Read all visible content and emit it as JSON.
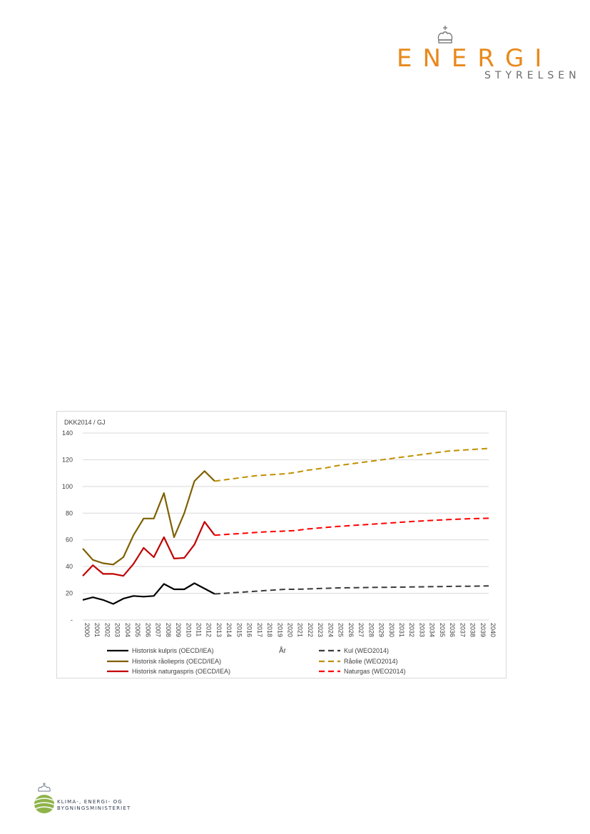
{
  "header_logo": {
    "word": "ENERGI",
    "sub": "STYRELSEN",
    "icon": "crown-icon",
    "color": "#e8891b"
  },
  "footer_logo": {
    "icon": "globe-crown-icon",
    "text": "KLIMA-, ENERGI- OG\nBYGNINGSMINISTERIET"
  },
  "chart_data": {
    "type": "line",
    "ylabel": "DKK2014 / GJ",
    "xlabel": "År",
    "ylim": [
      0,
      140
    ],
    "yticks": [
      "-",
      "20",
      "40",
      "60",
      "80",
      "100",
      "120",
      "140"
    ],
    "grid": true,
    "legend_position": "bottom",
    "x": [
      2000,
      2001,
      2002,
      2003,
      2004,
      2005,
      2006,
      2007,
      2008,
      2009,
      2010,
      2011,
      2012,
      2013,
      2014,
      2015,
      2016,
      2017,
      2018,
      2019,
      2020,
      2021,
      2022,
      2023,
      2024,
      2025,
      2026,
      2027,
      2028,
      2029,
      2030,
      2031,
      2032,
      2033,
      2034,
      2035,
      2036,
      2037,
      2038,
      2039,
      2040
    ],
    "x_tick_labels": [
      "2000",
      "2001",
      "2002",
      "2003",
      "2004",
      "2005",
      "2006",
      "2007",
      "2008",
      "2009",
      "2010",
      "2011",
      "2012",
      "2013",
      "2014",
      "2015",
      "2016",
      "2017",
      "2018",
      "2019",
      "2020",
      "2021",
      "2022",
      "2023",
      "2024",
      "2025",
      "2026",
      "2027",
      "2028",
      "2029",
      "2030",
      "2031",
      "2032",
      "2033",
      "2034",
      "2035",
      "2036",
      "2037",
      "2038",
      "2039",
      "2040"
    ],
    "series": [
      {
        "name": "Historisk kulpris (OECD/IEA)",
        "color": "#000000",
        "dashed": false,
        "x": [
          2000,
          2001,
          2002,
          2003,
          2004,
          2005,
          2006,
          2007,
          2008,
          2009,
          2010,
          2011,
          2012,
          2013
        ],
        "values": [
          15,
          17,
          15,
          12,
          16,
          18,
          17.5,
          18,
          27,
          23,
          23,
          27.5,
          23.5,
          19.5
        ]
      },
      {
        "name": "Historisk råoliepris (OECD/IEA)",
        "color": "#7f6000",
        "dashed": false,
        "x": [
          2000,
          2001,
          2002,
          2003,
          2004,
          2005,
          2006,
          2007,
          2008,
          2009,
          2010,
          2011,
          2012,
          2013
        ],
        "values": [
          53.5,
          45,
          42.5,
          41.5,
          47,
          63.5,
          76,
          76,
          95,
          62,
          80,
          104,
          111.5,
          104
        ]
      },
      {
        "name": "Historisk naturgaspris (OECD/IEA)",
        "color": "#c00000",
        "dashed": false,
        "x": [
          2000,
          2001,
          2002,
          2003,
          2004,
          2005,
          2006,
          2007,
          2008,
          2009,
          2010,
          2011,
          2012,
          2013
        ],
        "values": [
          33,
          41,
          34.5,
          34.5,
          33,
          42,
          54,
          47,
          62,
          46,
          46.5,
          56.5,
          73.5,
          63.5
        ]
      },
      {
        "name": "Kul (WEO2014)",
        "color": "#3a3a3a",
        "dashed": true,
        "x": [
          2013,
          2014,
          2015,
          2016,
          2017,
          2018,
          2019,
          2020,
          2021,
          2022,
          2023,
          2024,
          2025,
          2026,
          2027,
          2028,
          2029,
          2030,
          2031,
          2032,
          2033,
          2034,
          2035,
          2036,
          2037,
          2038,
          2039,
          2040
        ],
        "values": [
          19.5,
          20,
          20.5,
          21,
          21.5,
          22,
          22.5,
          23,
          23,
          23.2,
          23.5,
          23.7,
          24,
          24.1,
          24.2,
          24.3,
          24.4,
          24.5,
          24.6,
          24.7,
          24.8,
          24.9,
          25,
          25.1,
          25.2,
          25.3,
          25.4,
          25.5
        ]
      },
      {
        "name": "Råolie (WEO2014)",
        "color": "#bf9000",
        "dashed": true,
        "x": [
          2013,
          2014,
          2015,
          2016,
          2017,
          2018,
          2019,
          2020,
          2021,
          2022,
          2023,
          2024,
          2025,
          2026,
          2027,
          2028,
          2029,
          2030,
          2031,
          2032,
          2033,
          2034,
          2035,
          2036,
          2037,
          2038,
          2039,
          2040
        ],
        "values": [
          104,
          105,
          106,
          107,
          108,
          108.5,
          109,
          109.5,
          110.5,
          112,
          113,
          114,
          115.5,
          116.5,
          117.5,
          118.5,
          119.5,
          120.5,
          121.5,
          122.5,
          123.5,
          124.5,
          125.5,
          126.5,
          127,
          127.5,
          128,
          128.5
        ]
      },
      {
        "name": "Naturgas (WEO2014)",
        "color": "#ff0000",
        "dashed": true,
        "x": [
          2013,
          2014,
          2015,
          2016,
          2017,
          2018,
          2019,
          2020,
          2021,
          2022,
          2023,
          2024,
          2025,
          2026,
          2027,
          2028,
          2029,
          2030,
          2031,
          2032,
          2033,
          2034,
          2035,
          2036,
          2037,
          2038,
          2039,
          2040
        ],
        "values": [
          63.5,
          64,
          64.5,
          65,
          65.5,
          66,
          66.3,
          66.6,
          67,
          68,
          68.7,
          69.3,
          70,
          70.5,
          71,
          71.5,
          72,
          72.5,
          73,
          73.5,
          74,
          74.4,
          74.8,
          75.2,
          75.5,
          75.8,
          76,
          76.2
        ]
      }
    ]
  }
}
